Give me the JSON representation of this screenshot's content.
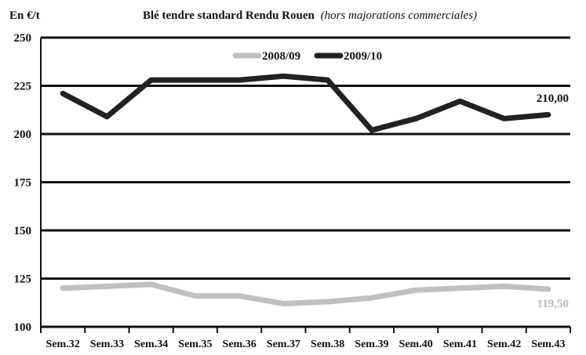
{
  "chart_data": {
    "type": "line",
    "title": "Blé tendre standard Rendu Rouen",
    "subtitle": "(hors majorations commerciales)",
    "ylabel": "En €/t",
    "ylim": [
      100,
      250
    ],
    "yticks": [
      "250",
      "225",
      "200",
      "175",
      "150",
      "125",
      "100"
    ],
    "ytick_values": [
      250,
      225,
      200,
      175,
      150,
      125,
      100
    ],
    "categories": [
      "Sem.32",
      "Sem.33",
      "Sem.34",
      "Sem.35",
      "Sem.36",
      "Sem.37",
      "Sem.38",
      "Sem.39",
      "Sem.40",
      "Sem.41",
      "Sem.42",
      "Sem.43"
    ],
    "series": [
      {
        "name": "2008/09",
        "color": "#c0c0c0",
        "values": [
          120,
          121,
          122,
          116,
          116,
          112,
          113,
          115,
          119,
          120,
          121,
          119.5
        ]
      },
      {
        "name": "2009/10",
        "color": "#222222",
        "values": [
          221,
          209,
          228,
          228,
          228,
          230,
          228,
          202,
          208,
          217,
          208,
          210
        ]
      }
    ],
    "data_labels": {
      "2009/10": "210,00",
      "2008/09": "119,50"
    },
    "grid": "horizontal",
    "legend_position": "top-center"
  }
}
